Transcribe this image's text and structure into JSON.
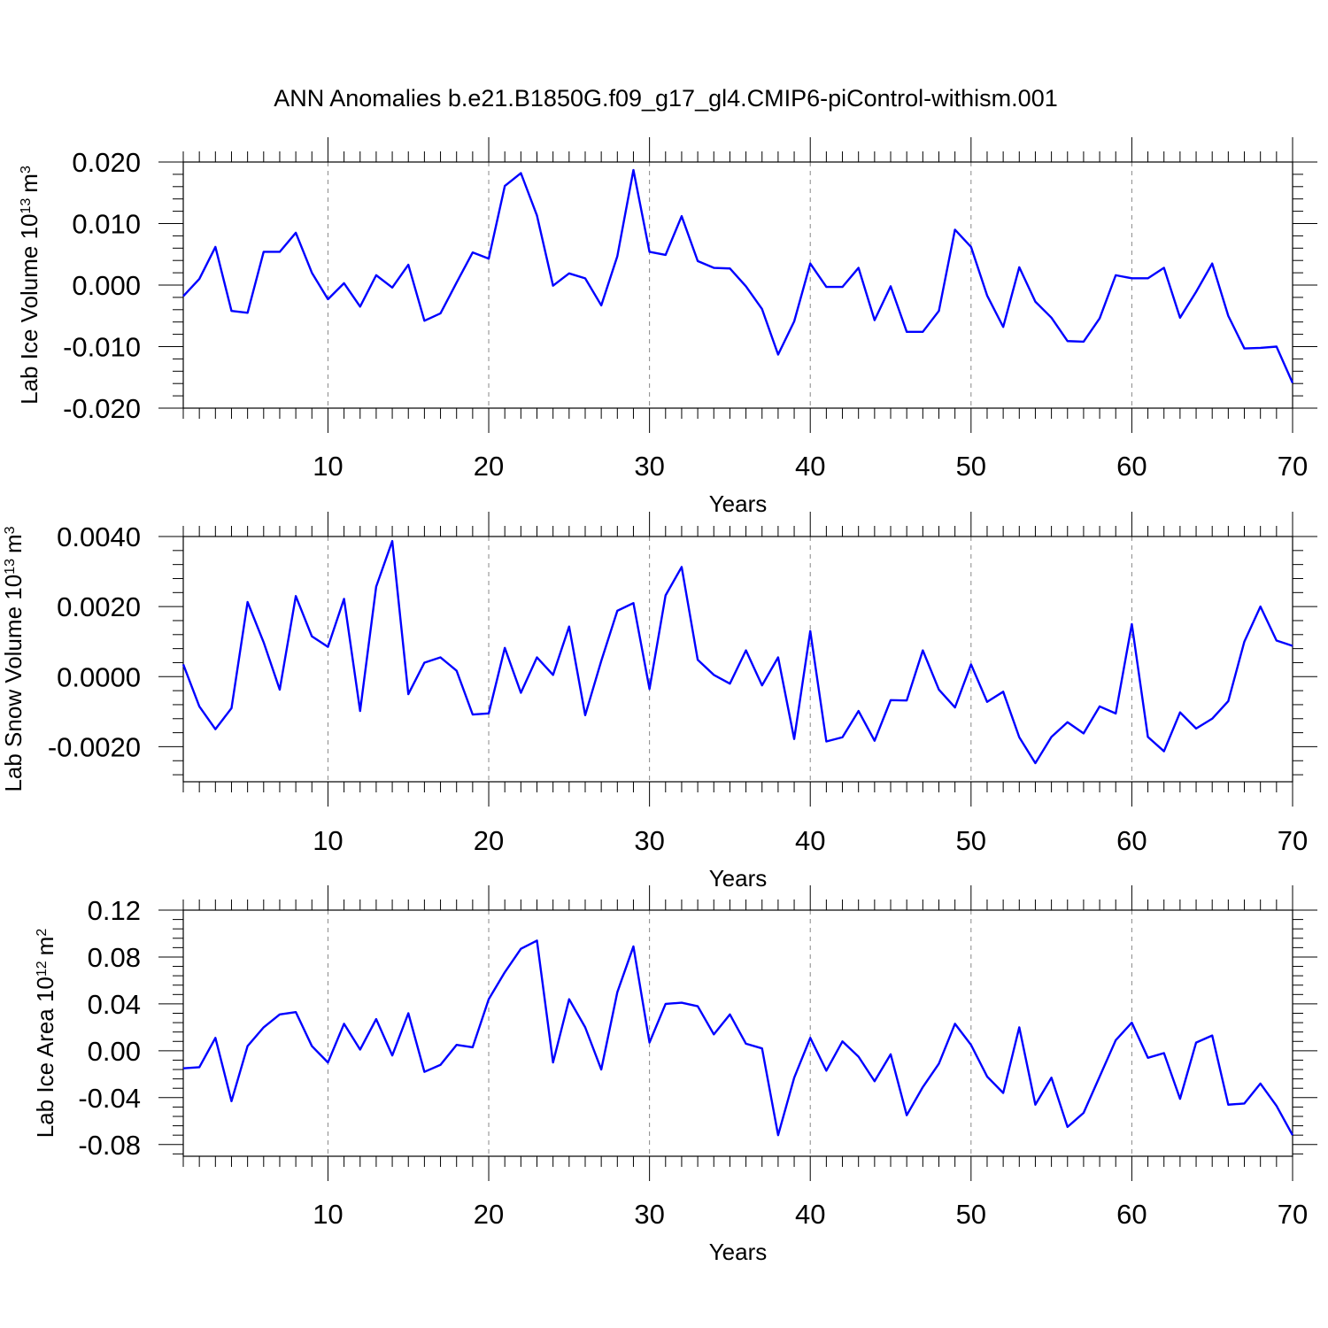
{
  "title": "ANN Anomalies b.e21.B1850G.f09_g17_gl4.CMIP6-piControl-withism.001",
  "colors": {
    "line": "#0000ff",
    "frame": "#000000",
    "grid": "#888888"
  },
  "chart_data": [
    {
      "type": "line",
      "xlabel": "Years",
      "ylabel": "Lab Ice Volume 10",
      "ylabel_sup": "13",
      "ylabel_unit": "m",
      "ylabel_unit_sup": "3",
      "xlim": [
        1,
        70
      ],
      "ylim": [
        -0.02,
        0.02
      ],
      "xticks": [
        10,
        20,
        30,
        40,
        50,
        60,
        70
      ],
      "yticks": [
        0.02,
        0.01,
        0.0,
        -0.01,
        -0.02
      ],
      "ytick_labels": [
        "0.020",
        "0.010",
        "0.000",
        "-0.010",
        "-0.020"
      ],
      "grid": "vertical dashed at major x ticks",
      "x": [
        1,
        2,
        3,
        4,
        5,
        6,
        7,
        8,
        9,
        10,
        11,
        12,
        13,
        14,
        15,
        16,
        17,
        18,
        19,
        20,
        21,
        22,
        23,
        24,
        25,
        26,
        27,
        28,
        29,
        30,
        31,
        32,
        33,
        34,
        35,
        36,
        37,
        38,
        39,
        40,
        41,
        42,
        43,
        44,
        45,
        46,
        47,
        48,
        49,
        50,
        51,
        52,
        53,
        54,
        55,
        56,
        57,
        58,
        59,
        60,
        61,
        62,
        63,
        64,
        65,
        66,
        67,
        68,
        69,
        70
      ],
      "values": [
        -0.0018,
        0.001,
        0.0062,
        -0.0042,
        -0.0045,
        0.0054,
        0.0054,
        0.0085,
        0.002,
        -0.0023,
        0.0003,
        -0.0035,
        0.0016,
        -0.0004,
        0.0033,
        -0.0058,
        -0.0046,
        0.0004,
        0.0053,
        0.0043,
        0.0161,
        0.0182,
        0.0113,
        -0.0001,
        0.0019,
        0.0011,
        -0.0033,
        0.0047,
        0.0187,
        0.0054,
        0.0049,
        0.0112,
        0.0039,
        0.0028,
        0.0027,
        -0.0002,
        -0.0039,
        -0.0113,
        -0.0059,
        0.0035,
        -0.0003,
        -0.0003,
        0.0028,
        -0.0057,
        -0.0002,
        -0.0076,
        -0.0076,
        -0.0042,
        0.009,
        0.0062,
        -0.0017,
        -0.0068,
        0.0029,
        -0.0027,
        -0.0053,
        -0.0091,
        -0.0092,
        -0.0054,
        0.0016,
        0.0011,
        0.0011,
        0.0028,
        -0.0053,
        -0.0011,
        0.0035,
        -0.005,
        -0.0103,
        -0.0102,
        -0.01,
        -0.0159
      ]
    },
    {
      "type": "line",
      "xlabel": "Years",
      "ylabel": "Lab Snow Volume 10",
      "ylabel_sup": "13",
      "ylabel_unit": "m",
      "ylabel_unit_sup": "3",
      "xlim": [
        1,
        70
      ],
      "ylim": [
        -0.003,
        0.004
      ],
      "xticks": [
        10,
        20,
        30,
        40,
        50,
        60,
        70
      ],
      "yticks": [
        0.004,
        0.002,
        0.0,
        -0.002
      ],
      "ytick_labels": [
        "0.0040",
        "0.0020",
        "0.0000",
        "-0.0020"
      ],
      "grid": "vertical dashed at major x ticks",
      "x": [
        1,
        2,
        3,
        4,
        5,
        6,
        7,
        8,
        9,
        10,
        11,
        12,
        13,
        14,
        15,
        16,
        17,
        18,
        19,
        20,
        21,
        22,
        23,
        24,
        25,
        26,
        27,
        28,
        29,
        30,
        31,
        32,
        33,
        34,
        35,
        36,
        37,
        38,
        39,
        40,
        41,
        42,
        43,
        44,
        45,
        46,
        47,
        48,
        49,
        50,
        51,
        52,
        53,
        54,
        55,
        56,
        57,
        58,
        59,
        60,
        61,
        62,
        63,
        64,
        65,
        66,
        67,
        68,
        69,
        70
      ],
      "values": [
        0.00035,
        -0.00085,
        -0.0015,
        -0.0009,
        0.00213,
        0.00098,
        -0.00037,
        0.0023,
        0.00115,
        0.00085,
        0.00222,
        -0.00098,
        0.00257,
        0.00387,
        -0.0005,
        0.0004,
        0.00055,
        0.00017,
        -0.00108,
        -0.00105,
        0.00082,
        -0.00046,
        0.00055,
        5e-05,
        0.00143,
        -0.0011,
        0.00045,
        0.00188,
        0.0021,
        -0.00035,
        0.00232,
        0.00313,
        0.00048,
        5e-05,
        -0.0002,
        0.00075,
        -0.00025,
        0.00055,
        -0.00178,
        0.0013,
        -0.00185,
        -0.00173,
        -0.00098,
        -0.00183,
        -0.00067,
        -0.00068,
        0.00075,
        -0.00037,
        -0.00088,
        0.00035,
        -0.00072,
        -0.00043,
        -0.00173,
        -0.00247,
        -0.00172,
        -0.0013,
        -0.00162,
        -0.00085,
        -0.00105,
        0.0015,
        -0.00172,
        -0.00213,
        -0.00102,
        -0.00148,
        -0.0012,
        -0.0007,
        0.001,
        0.002,
        0.00103,
        0.00088
      ]
    },
    {
      "type": "line",
      "xlabel": "Years",
      "ylabel": "Lab Ice Area 10",
      "ylabel_sup": "12",
      "ylabel_unit": "m",
      "ylabel_unit_sup": "2",
      "xlim": [
        1,
        70
      ],
      "ylim": [
        -0.09,
        0.12
      ],
      "xticks": [
        10,
        20,
        30,
        40,
        50,
        60,
        70
      ],
      "yticks": [
        0.12,
        0.08,
        0.04,
        0.0,
        -0.04,
        -0.08
      ],
      "ytick_labels": [
        "0.12",
        "0.08",
        "0.04",
        "0.00",
        "-0.04",
        "-0.08"
      ],
      "grid": "vertical dashed at major x ticks",
      "x": [
        1,
        2,
        3,
        4,
        5,
        6,
        7,
        8,
        9,
        10,
        11,
        12,
        13,
        14,
        15,
        16,
        17,
        18,
        19,
        20,
        21,
        22,
        23,
        24,
        25,
        26,
        27,
        28,
        29,
        30,
        31,
        32,
        33,
        34,
        35,
        36,
        37,
        38,
        39,
        40,
        41,
        42,
        43,
        44,
        45,
        46,
        47,
        48,
        49,
        50,
        51,
        52,
        53,
        54,
        55,
        56,
        57,
        58,
        59,
        60,
        61,
        62,
        63,
        64,
        65,
        66,
        67,
        68,
        69,
        70
      ],
      "values": [
        -0.015,
        -0.014,
        0.011,
        -0.043,
        0.004,
        0.02,
        0.031,
        0.033,
        0.004,
        -0.01,
        0.023,
        0.001,
        0.027,
        -0.004,
        0.032,
        -0.018,
        -0.012,
        0.005,
        0.003,
        0.044,
        0.067,
        0.087,
        0.094,
        -0.01,
        0.044,
        0.02,
        -0.016,
        0.05,
        0.089,
        0.007,
        0.04,
        0.041,
        0.038,
        0.014,
        0.031,
        0.006,
        0.002,
        -0.072,
        -0.023,
        0.011,
        -0.017,
        0.008,
        -0.005,
        -0.026,
        -0.003,
        -0.055,
        -0.031,
        -0.011,
        0.023,
        0.005,
        -0.022,
        -0.036,
        0.02,
        -0.046,
        -0.023,
        -0.065,
        -0.053,
        -0.022,
        0.009,
        0.024,
        -0.006,
        -0.002,
        -0.041,
        0.007,
        0.013,
        -0.046,
        -0.045,
        -0.028,
        -0.047,
        -0.072
      ]
    }
  ]
}
